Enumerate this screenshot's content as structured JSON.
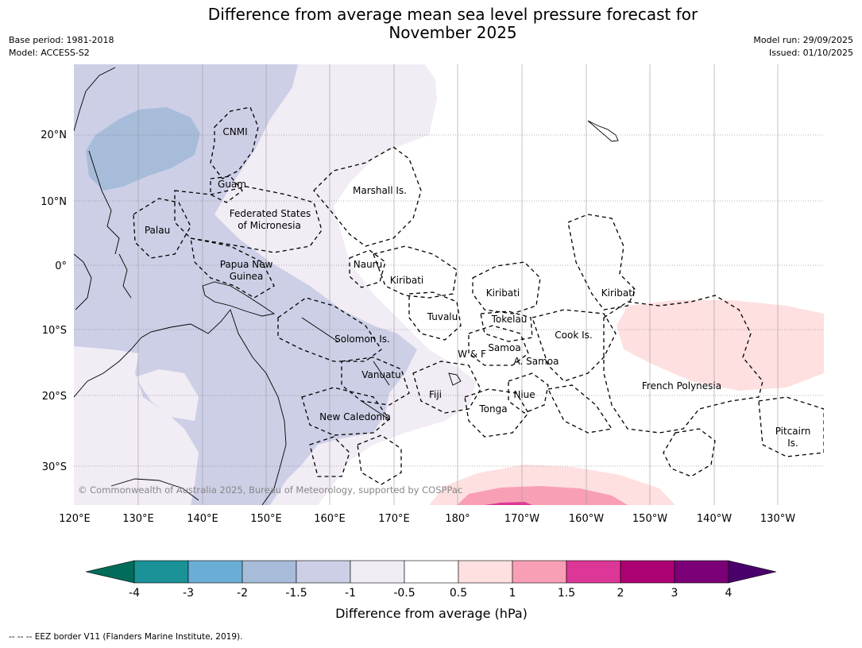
{
  "title_line1": "Difference from average mean sea level pressure forecast for",
  "title_line2": "November 2025",
  "base_period": "Base period: 1981-2018",
  "model": "Model: ACCESS-S2",
  "model_run": "Model run: 29/09/2025",
  "issued": "Issued: 01/10/2025",
  "copyright": "© Commonwealth of Australia 2025, Bureau of Meteorology, supported by COSPPac",
  "map": {
    "lon_labels": [
      "120°E",
      "130°E",
      "140°E",
      "150°E",
      "160°E",
      "170°E",
      "180°",
      "170°W",
      "160°W",
      "150°W",
      "140°W",
      "130°W"
    ],
    "lat_labels": [
      "20°N",
      "10°N",
      "0°",
      "10°S",
      "20°S",
      "30°S"
    ],
    "regions": {
      "cnmi": "CNMI",
      "guam": "Guam",
      "marshall": "Marshall Is.",
      "fsm_1": "Federated States",
      "fsm_2": "of Micronesia",
      "palau": "Palau",
      "png_1": "Papua New",
      "png_2": "Guinea",
      "nauru": "Nauru",
      "kiribati_w": "Kiribati",
      "kiribati_c": "Kiribati",
      "kiribati_e": "Kiribati",
      "tuvalu": "Tuvalu",
      "tokelau": "Tokelau",
      "cook": "Cook Is.",
      "solomon": "Solomon Is.",
      "samoa": "Samoa",
      "wf": "W & F",
      "asamoa": "A. Samoa",
      "vanuatu": "Vanuatu",
      "fiji": "Fiji",
      "niue": "Niue",
      "tonga": "Tonga",
      "new_caledonia": "New Caledonia",
      "french_polynesia": "French Polynesia",
      "pitcairn_1": "Pitcairn",
      "pitcairn_2": "Is."
    }
  },
  "colorbar": {
    "labels": [
      "-4",
      "-3",
      "-2",
      "-1.5",
      "-1",
      "-0.5",
      "0.5",
      "1",
      "1.5",
      "2",
      "3",
      "4"
    ],
    "colors": [
      "#1a9297",
      "#6aaed6",
      "#a7bcd9",
      "#cdcfe6",
      "#f2ecf5",
      "#ffffff",
      "#fee0e0",
      "#f89fb6",
      "#dc3796",
      "#ac0173",
      "#7b0077"
    ],
    "under_color": "#016c59",
    "over_color": "#4a006a",
    "label": "Difference from average (hPa)"
  },
  "eez_note": "--  --  -- EEZ border V11 (Flanders Marine Institute, 2019)."
}
